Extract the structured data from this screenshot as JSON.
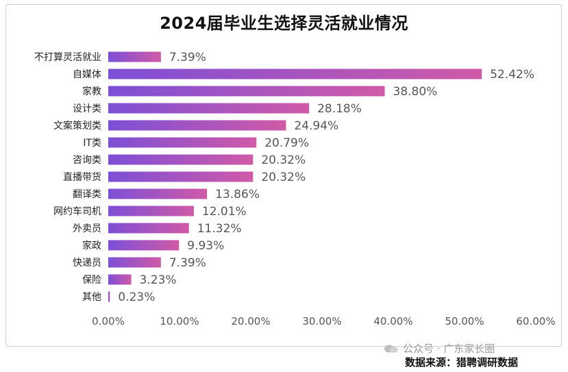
{
  "chart_data": {
    "type": "bar",
    "orientation": "horizontal",
    "title": "2024届毕业生选择灵活就业情况",
    "categories": [
      "不打算灵活就业",
      "自媒体",
      "家教",
      "设计类",
      "文案策划类",
      "IT类",
      "咨询类",
      "直播带货",
      "翻译类",
      "网约车司机",
      "外卖员",
      "家政",
      "快递员",
      "保险",
      "其他"
    ],
    "values": [
      7.39,
      52.42,
      38.8,
      28.18,
      24.94,
      20.79,
      20.32,
      20.32,
      13.86,
      12.01,
      11.32,
      9.93,
      7.39,
      3.23,
      0.23
    ],
    "value_labels": [
      "7.39%",
      "52.42%",
      "38.80%",
      "28.18%",
      "24.94%",
      "20.79%",
      "20.32%",
      "20.32%",
      "13.86%",
      "12.01%",
      "11.32%",
      "9.93%",
      "7.39%",
      "3.23%",
      "0.23%"
    ],
    "xlim": [
      0,
      60
    ],
    "x_ticks": [
      "0.00%",
      "10.00%",
      "20.00%",
      "30.00%",
      "40.00%",
      "50.00%",
      "60.00%"
    ],
    "grid": false,
    "bar_gradient": [
      "#7d4fd6",
      "#d05aa8"
    ]
  },
  "watermark": "公众号 · 广东家长圈",
  "source": "数据来源：猎聘调研数据"
}
